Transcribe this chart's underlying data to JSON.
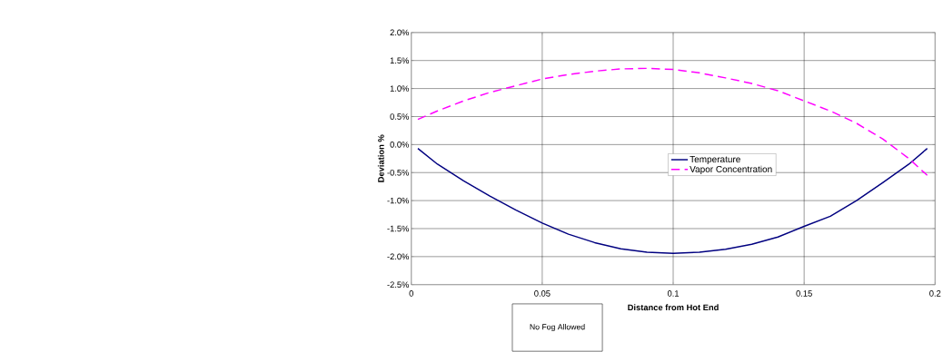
{
  "chart_data": {
    "type": "line",
    "xlabel": "Distance from Hot End",
    "ylabel": "Deviation    %",
    "xlim": [
      0,
      0.2
    ],
    "xticks": [
      0,
      0.05,
      0.1,
      0.15,
      0.2
    ],
    "ylim": [
      -2.5,
      2.0
    ],
    "yticks": [
      {
        "value": -2.5,
        "label": "-2.5%"
      },
      {
        "value": -2.0,
        "label": "-2.0%"
      },
      {
        "value": -1.5,
        "label": "-1.5%"
      },
      {
        "value": -1.0,
        "label": "-1.0%"
      },
      {
        "value": -0.5,
        "label": "-0.5%"
      },
      {
        "value": 0,
        "label": "0.0%"
      },
      {
        "value": 0.5,
        "label": "0.5%"
      },
      {
        "value": 1.0,
        "label": "1.0%"
      },
      {
        "value": 1.5,
        "label": "1.5%"
      },
      {
        "value": 2.0,
        "label": "2.0%"
      }
    ],
    "grid": true,
    "legend": "right",
    "marker": "none",
    "annotations": [
      "No Fog Allowed"
    ],
    "x": [
      0.0025,
      0.01,
      0.02,
      0.03,
      0.04,
      0.05,
      0.06,
      0.07,
      0.08,
      0.09,
      0.1,
      0.11,
      0.12,
      0.13,
      0.14,
      0.15,
      0.16,
      0.17,
      0.18,
      0.19,
      0.197
    ],
    "series": [
      {
        "name": "Temperature",
        "color": "#000080",
        "line_style": "solid",
        "values": [
          -0.07,
          -0.35,
          -0.65,
          -0.92,
          -1.17,
          -1.4,
          -1.6,
          -1.75,
          -1.86,
          -1.92,
          -1.94,
          -1.92,
          -1.87,
          -1.78,
          -1.65,
          -1.46,
          -1.28,
          -1.0,
          -0.68,
          -0.35,
          -0.07
        ]
      },
      {
        "name": "Vapor Concentration",
        "color": "#ff00ff",
        "line_style": "dashed",
        "values": [
          0.45,
          0.6,
          0.78,
          0.93,
          1.05,
          1.17,
          1.25,
          1.31,
          1.35,
          1.36,
          1.34,
          1.28,
          1.19,
          1.09,
          0.96,
          0.78,
          0.6,
          0.38,
          0.1,
          -0.25,
          -0.55
        ]
      }
    ]
  }
}
